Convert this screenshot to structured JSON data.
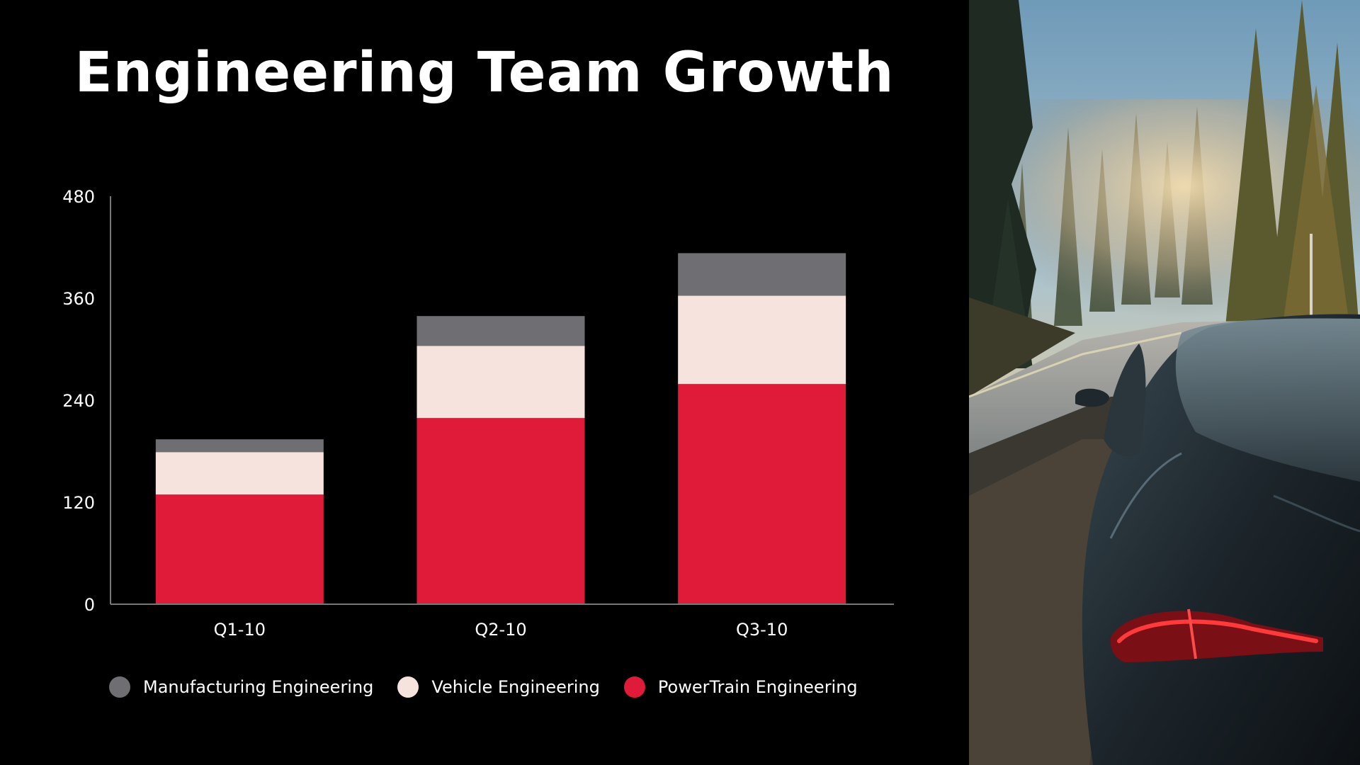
{
  "slide": {
    "title": "Engineering Team Growth"
  },
  "colors": {
    "background": "#000000",
    "manufacturing": "#6f6e72",
    "vehicle": "#f7e3dd",
    "powertrain": "#e01a39",
    "axis": "#777777"
  },
  "photo": {
    "icon": "forest-road-car-photo"
  },
  "chart_data": {
    "type": "bar",
    "stacked": true,
    "title": "Engineering Team Growth",
    "categories": [
      "Q1-10",
      "Q2-10",
      "Q3-10"
    ],
    "series": [
      {
        "name": "PowerTrain Engineering",
        "values": [
          129,
          219,
          259
        ],
        "color": "#e01a39"
      },
      {
        "name": "Vehicle Engineering",
        "values": [
          50,
          85,
          104
        ],
        "color": "#f7e3dd"
      },
      {
        "name": "Manufacturing Engineering",
        "values": [
          15,
          35,
          50
        ],
        "color": "#6f6e72"
      }
    ],
    "legend_order": [
      "Manufacturing Engineering",
      "Vehicle Engineering",
      "PowerTrain Engineering"
    ],
    "ylim": [
      0,
      480
    ],
    "yticks": [
      0,
      120,
      240,
      360,
      480
    ],
    "xlabel": "",
    "ylabel": "",
    "grid": false,
    "legend_position": "bottom"
  }
}
